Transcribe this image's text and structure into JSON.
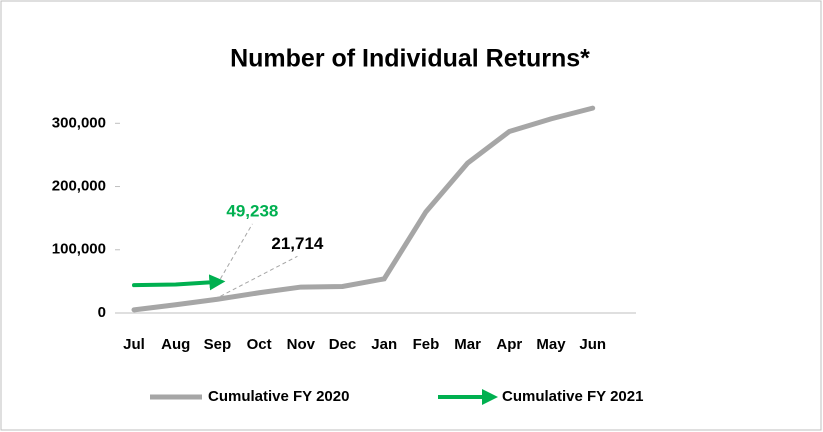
{
  "chart_data": {
    "type": "line",
    "title": "Number of Individual Returns*",
    "categories": [
      "Jul",
      "Aug",
      "Sep",
      "Oct",
      "Nov",
      "Dec",
      "Jan",
      "Feb",
      "Mar",
      "Apr",
      "May",
      "Jun"
    ],
    "series": [
      {
        "name": "Cumulative FY 2020",
        "color": "#a6a6a6",
        "values": [
          5000,
          13000,
          21714,
          32000,
          41000,
          42000,
          54000,
          160000,
          237000,
          287000,
          307000,
          324000
        ],
        "value_labels": [
          null,
          null,
          "21,714",
          null,
          null,
          null,
          null,
          null,
          null,
          null,
          null,
          null
        ]
      },
      {
        "name": "Cumulative FY 2021",
        "color": "#00b050",
        "values": [
          44000,
          45000,
          49238,
          null,
          null,
          null,
          null,
          null,
          null,
          null,
          null,
          null
        ],
        "value_labels": [
          null,
          null,
          "49,238",
          null,
          null,
          null,
          null,
          null,
          null,
          null,
          null,
          null
        ]
      }
    ],
    "ylim": [
      0,
      340000
    ],
    "yticks": [
      0,
      {
        "value": 100000,
        "label": "100,000"
      },
      {
        "value": 200000,
        "label": "200,000"
      },
      {
        "value": 300000,
        "label": "300,000"
      }
    ],
    "legend": "bottom"
  }
}
